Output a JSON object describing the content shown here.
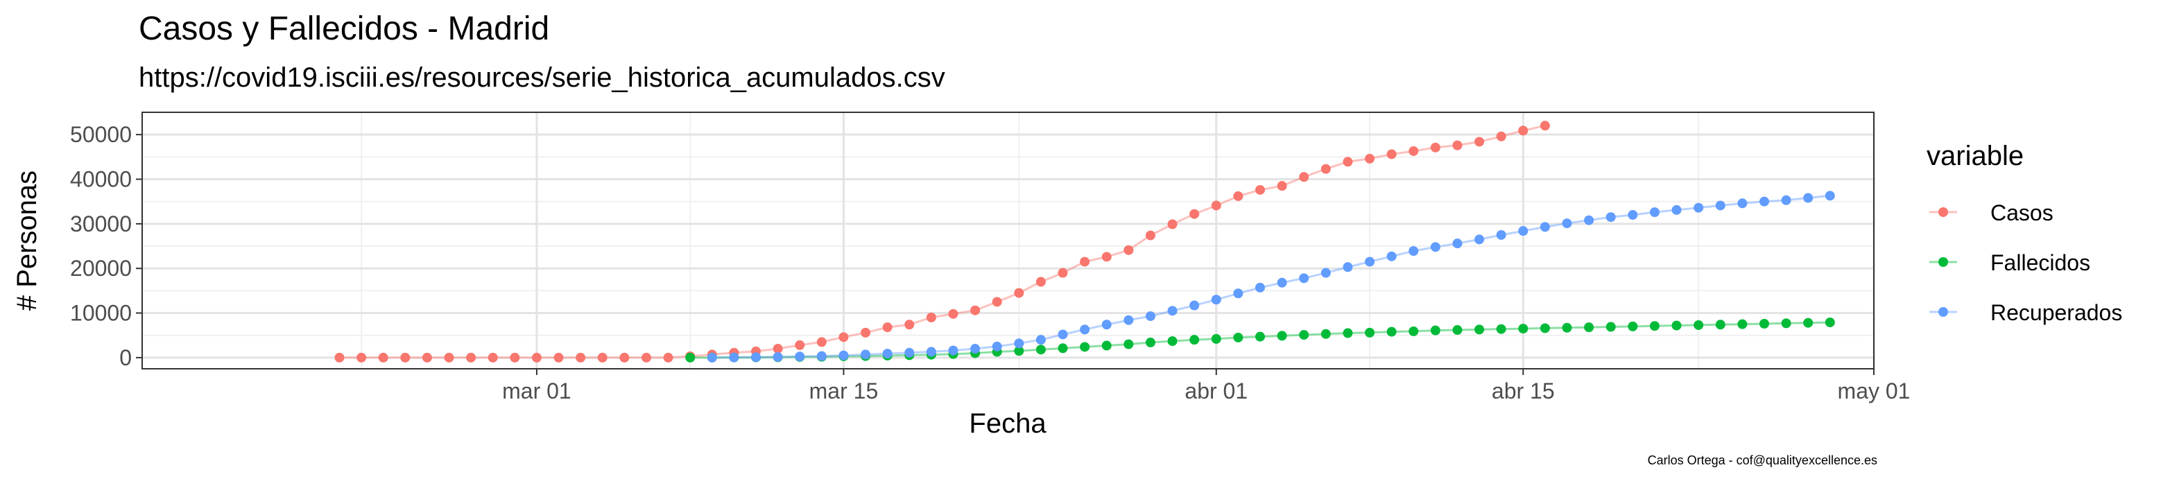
{
  "chart_data": {
    "type": "line",
    "title": "Casos y Fallecidos - Madrid",
    "subtitle": "https://covid19.isciii.es/resources/serie_historica_acumulados.csv",
    "xlabel": "Fecha",
    "ylabel": "# Personas",
    "caption": "Carlos Ortega - cof@qualityexcellence.es",
    "x_axis": {
      "type": "date",
      "range": [
        "2020-02-12",
        "2020-05-01"
      ],
      "ticks": [
        {
          "date": "2020-03-01",
          "label": "mar 01"
        },
        {
          "date": "2020-03-15",
          "label": "mar 15"
        },
        {
          "date": "2020-04-01",
          "label": "abr 01"
        },
        {
          "date": "2020-04-15",
          "label": "abr 15"
        },
        {
          "date": "2020-05-01",
          "label": "may 01"
        }
      ],
      "minor_ticks": [
        "2020-02-22",
        "2020-03-08",
        "2020-03-23",
        "2020-04-08",
        "2020-04-23"
      ]
    },
    "y_axis": {
      "range": [
        -2500,
        55000
      ],
      "ticks": [
        {
          "value": 0,
          "label": "0"
        },
        {
          "value": 10000,
          "label": "10000"
        },
        {
          "value": 20000,
          "label": "20000"
        },
        {
          "value": 30000,
          "label": "30000"
        },
        {
          "value": 40000,
          "label": "40000"
        },
        {
          "value": 50000,
          "label": "50000"
        }
      ],
      "minor_ticks": [
        5000,
        15000,
        25000,
        35000,
        45000
      ]
    },
    "grid": true,
    "theme": "bw",
    "legend": {
      "title": "variable",
      "position": "right",
      "items": [
        {
          "name": "Casos",
          "color": "#f8766d"
        },
        {
          "name": "Fallecidos",
          "color": "#00ba38"
        },
        {
          "name": "Recuperados",
          "color": "#619cff"
        }
      ]
    },
    "series": [
      {
        "name": "Casos",
        "color": "#f8766d",
        "x": [
          "2020-02-21",
          "2020-02-22",
          "2020-02-23",
          "2020-02-24",
          "2020-02-25",
          "2020-02-26",
          "2020-02-27",
          "2020-02-28",
          "2020-02-29",
          "2020-03-01",
          "2020-03-02",
          "2020-03-03",
          "2020-03-04",
          "2020-03-05",
          "2020-03-06",
          "2020-03-07",
          "2020-03-08",
          "2020-03-09",
          "2020-03-10",
          "2020-03-11",
          "2020-03-12",
          "2020-03-13",
          "2020-03-14",
          "2020-03-15",
          "2020-03-16",
          "2020-03-17",
          "2020-03-18",
          "2020-03-19",
          "2020-03-20",
          "2020-03-21",
          "2020-03-22",
          "2020-03-23",
          "2020-03-24",
          "2020-03-25",
          "2020-03-26",
          "2020-03-27",
          "2020-03-28",
          "2020-03-29",
          "2020-03-30",
          "2020-03-31",
          "2020-04-01",
          "2020-04-02",
          "2020-04-03",
          "2020-04-04",
          "2020-04-05",
          "2020-04-06",
          "2020-04-07",
          "2020-04-08",
          "2020-04-09",
          "2020-04-10",
          "2020-04-11",
          "2020-04-12",
          "2020-04-13",
          "2020-04-14",
          "2020-04-15",
          "2020-04-16"
        ],
        "values": [
          0,
          0,
          0,
          0,
          0,
          0,
          0,
          0,
          0,
          0,
          0,
          0,
          0,
          0,
          0,
          0,
          300,
          700,
          1100,
          1400,
          2000,
          2800,
          3500,
          4600,
          5600,
          6800,
          7400,
          9000,
          9800,
          10600,
          12500,
          14500,
          17000,
          19000,
          21500,
          22600,
          24100,
          27400,
          29900,
          32200,
          34100,
          36200,
          37600,
          38500,
          40500,
          42300,
          43900,
          44600,
          45600,
          46300,
          47100,
          47600,
          48400,
          49600,
          50900,
          52000
        ]
      },
      {
        "name": "Fallecidos",
        "color": "#00ba38",
        "x": [
          "2020-03-08",
          "2020-03-09",
          "2020-03-10",
          "2020-03-11",
          "2020-03-12",
          "2020-03-13",
          "2020-03-14",
          "2020-03-15",
          "2020-03-16",
          "2020-03-17",
          "2020-03-18",
          "2020-03-19",
          "2020-03-20",
          "2020-03-21",
          "2020-03-22",
          "2020-03-23",
          "2020-03-24",
          "2020-03-25",
          "2020-03-26",
          "2020-03-27",
          "2020-03-28",
          "2020-03-29",
          "2020-03-30",
          "2020-03-31",
          "2020-04-01",
          "2020-04-02",
          "2020-04-03",
          "2020-04-04",
          "2020-04-05",
          "2020-04-06",
          "2020-04-07",
          "2020-04-08",
          "2020-04-09",
          "2020-04-10",
          "2020-04-11",
          "2020-04-12",
          "2020-04-13",
          "2020-04-14",
          "2020-04-15",
          "2020-04-16",
          "2020-04-17",
          "2020-04-18",
          "2020-04-19",
          "2020-04-20",
          "2020-04-21",
          "2020-04-22",
          "2020-04-23",
          "2020-04-24",
          "2020-04-25",
          "2020-04-26",
          "2020-04-27",
          "2020-04-28",
          "2020-04-29"
        ],
        "values": [
          0,
          20,
          30,
          50,
          80,
          150,
          200,
          300,
          350,
          450,
          550,
          650,
          800,
          1000,
          1300,
          1500,
          1800,
          2100,
          2400,
          2700,
          3000,
          3400,
          3700,
          4000,
          4200,
          4500,
          4700,
          4900,
          5100,
          5300,
          5500,
          5600,
          5800,
          5900,
          6100,
          6200,
          6300,
          6400,
          6500,
          6600,
          6700,
          6800,
          6900,
          7000,
          7100,
          7200,
          7300,
          7400,
          7500,
          7600,
          7700,
          7800,
          7900
        ]
      },
      {
        "name": "Recuperados",
        "color": "#619cff",
        "x": [
          "2020-03-09",
          "2020-03-10",
          "2020-03-11",
          "2020-03-12",
          "2020-03-13",
          "2020-03-14",
          "2020-03-15",
          "2020-03-16",
          "2020-03-17",
          "2020-03-18",
          "2020-03-19",
          "2020-03-20",
          "2020-03-21",
          "2020-03-22",
          "2020-03-23",
          "2020-03-24",
          "2020-03-25",
          "2020-03-26",
          "2020-03-27",
          "2020-03-28",
          "2020-03-29",
          "2020-03-30",
          "2020-03-31",
          "2020-04-01",
          "2020-04-02",
          "2020-04-03",
          "2020-04-04",
          "2020-04-05",
          "2020-04-06",
          "2020-04-07",
          "2020-04-08",
          "2020-04-09",
          "2020-04-10",
          "2020-04-11",
          "2020-04-12",
          "2020-04-13",
          "2020-04-14",
          "2020-04-15",
          "2020-04-16",
          "2020-04-17",
          "2020-04-18",
          "2020-04-19",
          "2020-04-20",
          "2020-04-21",
          "2020-04-22",
          "2020-04-23",
          "2020-04-24",
          "2020-04-25",
          "2020-04-26",
          "2020-04-27",
          "2020-04-28",
          "2020-04-29"
        ],
        "values": [
          0,
          50,
          100,
          150,
          250,
          350,
          500,
          700,
          900,
          1100,
          1300,
          1600,
          2000,
          2500,
          3200,
          4000,
          5200,
          6300,
          7400,
          8400,
          9300,
          10500,
          11700,
          13000,
          14400,
          15700,
          16800,
          17800,
          19000,
          20300,
          21500,
          22700,
          23900,
          24800,
          25600,
          26500,
          27500,
          28400,
          29300,
          30100,
          30800,
          31500,
          32000,
          32600,
          33100,
          33600,
          34100,
          34600,
          35000,
          35300,
          35800,
          36300
        ]
      }
    ]
  }
}
